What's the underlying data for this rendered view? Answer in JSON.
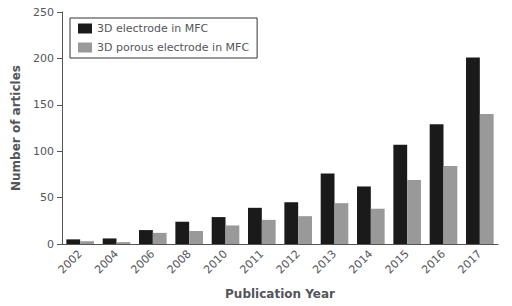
{
  "chart_data": {
    "type": "bar",
    "categories": [
      "2002",
      "2004",
      "2006",
      "2008",
      "2010",
      "2011",
      "2012",
      "2013",
      "2014",
      "2015",
      "2016",
      "2017"
    ],
    "series": [
      {
        "name": "3D electrode in MFC",
        "color": "#1a1a1a",
        "values": [
          5,
          6,
          15,
          24,
          29,
          39,
          45,
          76,
          62,
          107,
          129,
          201
        ]
      },
      {
        "name": "3D porous electrode in MFC",
        "color": "#999999",
        "values": [
          3,
          2,
          12,
          14,
          20,
          26,
          30,
          44,
          38,
          69,
          84,
          140
        ]
      }
    ],
    "xlabel": "Publication Year",
    "ylabel": "Number of articles",
    "ylim": [
      0,
      250
    ],
    "yticks": [
      0,
      50,
      100,
      150,
      200,
      250
    ],
    "grid": false,
    "legend": "upper left"
  }
}
